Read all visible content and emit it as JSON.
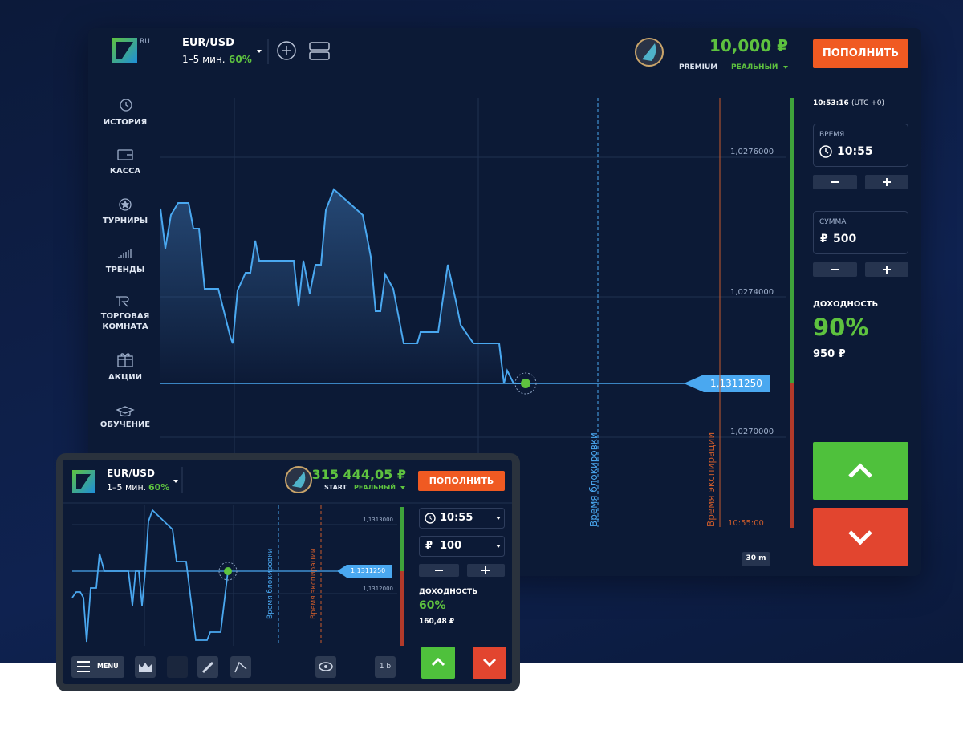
{
  "main": {
    "lang": "RU",
    "pair": "EUR/USD",
    "period": "1–5 мин.",
    "payout": "60%",
    "balance": "10,000 ₽",
    "account_type": "PREMIUM",
    "account_mode": "РЕАЛЬНЫЙ",
    "deposit_button": "ПОПОЛНИТЬ",
    "menu": [
      "ИСТОРИЯ",
      "КАССА",
      "ТУРНИРЫ",
      "ТРЕНДЫ",
      "ТОРГОВАЯ КОМНАТА",
      "АКЦИИ",
      "ОБУЧЕНИЕ"
    ],
    "price_labels": [
      "1,0276000",
      "1,0274000",
      "1,0270000"
    ],
    "current_price": "1,1311250",
    "lock_label": "Время блокировки",
    "expiry_label": "Время экспирации",
    "expiry_time": "10:55:00",
    "timeframe": "30 m",
    "clock": "10:53:16",
    "timezone": "(UTC +0)",
    "time_label": "ВРЕМЯ",
    "time_value": "10:55",
    "amount_label": "СУММА",
    "currency": "₽",
    "amount_value": "500",
    "profit_label": "ДОХОДНОСТЬ",
    "profit_percent": "90%",
    "profit_amount": "950 ₽"
  },
  "mobile": {
    "pair": "EUR/USD",
    "period": "1–5 мин.",
    "payout": "60%",
    "balance": "315 444,05 ₽",
    "account_type": "START",
    "account_mode": "РЕАЛЬНЫЙ",
    "deposit_button": "ПОПОЛНИТЬ",
    "price_labels": [
      "1,1313000",
      "1,1312000"
    ],
    "current_price": "1,1311250",
    "lock_label": "Время блокировки",
    "expiry_label": "Время экспирации",
    "time_value": "10:55",
    "currency": "₽",
    "amount_value": "100",
    "profit_label": "ДОХОДНОСТЬ",
    "profit_percent": "60%",
    "profit_amount": "160,48 ₽",
    "menu_button": "MENU",
    "timeframe": "1 b"
  }
}
